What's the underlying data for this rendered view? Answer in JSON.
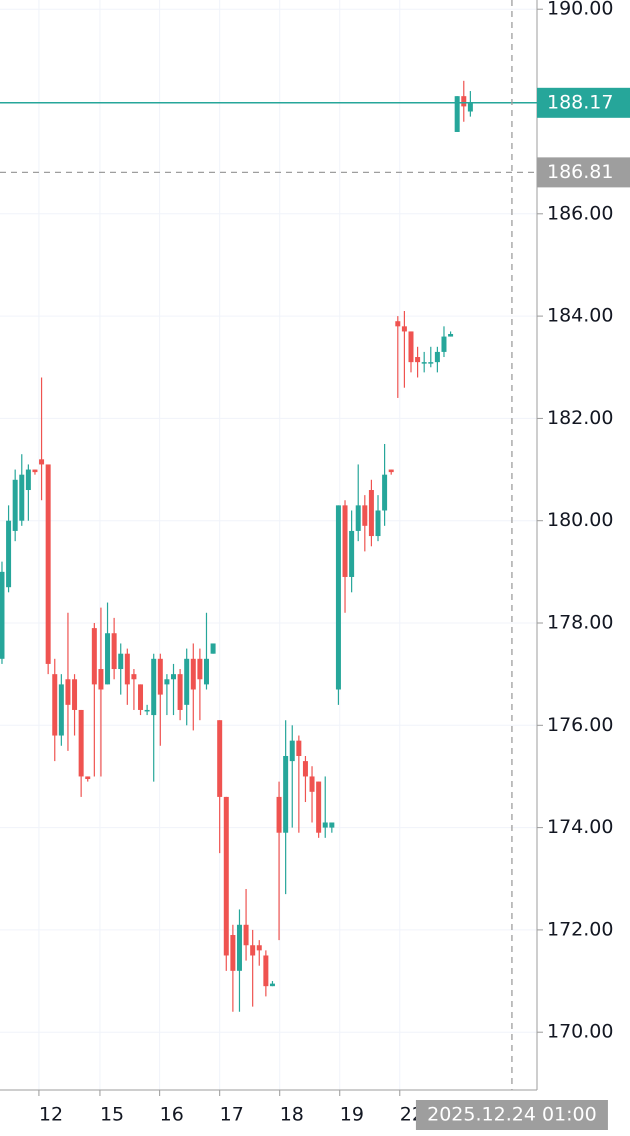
{
  "chart_data": {
    "type": "candlestick",
    "open": [
      177.3,
      178.7,
      179.8,
      180.0,
      180.6,
      181.0,
      181.2,
      181.1,
      177.0,
      175.8,
      176.9,
      176.9,
      176.3,
      175.0,
      177.9,
      177.1,
      176.8,
      177.8,
      177.1,
      177.4,
      177.0,
      176.8,
      176.3,
      176.2,
      177.3,
      176.8,
      176.9,
      177.0,
      176.4,
      177.3,
      177.3,
      176.8,
      177.4,
      176.1,
      174.6,
      171.9,
      171.2,
      172.1,
      171.7,
      171.7,
      171.5,
      170.9,
      174.6,
      173.9,
      175.3,
      175.7,
      175.3,
      175.0,
      174.9,
      174.0,
      174.0,
      176.7,
      180.3,
      178.9,
      179.8,
      180.3,
      180.6,
      179.7,
      180.2,
      181.0,
      183.9,
      183.8,
      183.7,
      183.2,
      183.1,
      183.1,
      183.1,
      183.3,
      183.6,
      187.6,
      188.3,
      188.0
    ],
    "high": [
      179.2,
      180.3,
      181.0,
      181.3,
      181.1,
      181.0,
      182.8,
      181.1,
      177.3,
      177.0,
      178.2,
      177.0,
      176.3,
      175.0,
      178.0,
      178.3,
      178.4,
      178.1,
      177.6,
      177.5,
      177.1,
      176.8,
      176.4,
      177.4,
      177.4,
      177.0,
      177.2,
      177.1,
      177.5,
      177.6,
      177.5,
      178.2,
      177.6,
      176.1,
      174.6,
      172.1,
      172.4,
      172.8,
      172.0,
      171.8,
      171.6,
      171.0,
      174.9,
      176.1,
      176.0,
      175.8,
      175.4,
      175.2,
      174.9,
      175.0,
      174.1,
      180.3,
      180.4,
      180.2,
      181.1,
      180.5,
      180.8,
      180.5,
      181.5,
      181.0,
      184.0,
      184.1,
      183.7,
      183.4,
      183.3,
      183.4,
      183.4,
      183.8,
      183.7,
      188.3,
      188.6,
      188.4
    ],
    "low": [
      177.2,
      178.6,
      179.6,
      179.9,
      180.0,
      180.9,
      180.4,
      177.0,
      175.3,
      175.6,
      175.5,
      175.8,
      174.6,
      174.9,
      175.0,
      175.0,
      176.8,
      176.9,
      176.6,
      176.4,
      176.3,
      176.2,
      176.2,
      174.9,
      175.6,
      176.2,
      176.2,
      176.1,
      176.0,
      175.9,
      176.1,
      176.7,
      177.4,
      173.5,
      171.2,
      170.4,
      170.4,
      171.4,
      170.5,
      171.3,
      170.7,
      170.9,
      171.8,
      172.7,
      174.0,
      173.9,
      174.5,
      174.1,
      173.8,
      173.8,
      173.9,
      176.4,
      178.2,
      178.6,
      179.6,
      179.4,
      179.5,
      179.6,
      179.9,
      180.9,
      182.4,
      182.6,
      182.9,
      182.8,
      182.9,
      183.0,
      182.9,
      183.2,
      183.6,
      187.6,
      187.8,
      187.9
    ],
    "close": [
      179.0,
      180.0,
      180.8,
      180.9,
      181.0,
      180.95,
      181.1,
      177.2,
      175.8,
      176.8,
      176.4,
      176.3,
      175.0,
      174.95,
      176.8,
      176.7,
      177.8,
      177.1,
      177.4,
      176.8,
      176.9,
      176.3,
      176.3,
      177.3,
      176.6,
      176.9,
      177.0,
      176.3,
      177.3,
      176.7,
      176.9,
      177.3,
      177.6,
      174.6,
      171.5,
      171.2,
      172.1,
      171.7,
      171.5,
      171.6,
      170.9,
      170.95,
      173.9,
      175.4,
      175.7,
      175.4,
      175.0,
      174.7,
      173.9,
      174.1,
      174.1,
      180.3,
      178.9,
      179.8,
      180.3,
      179.9,
      179.7,
      180.2,
      180.9,
      180.95,
      183.8,
      183.7,
      183.1,
      183.1,
      183.1,
      183.1,
      183.3,
      183.6,
      183.65,
      188.3,
      188.1,
      188.17
    ],
    "up_color": "#26a69a",
    "down_color": "#ef5350",
    "grid": true,
    "xlim": [
      -0.3,
      81.1
    ],
    "ylim": [
      168.87,
      190.18
    ],
    "xticks": [
      {
        "value": 5.6,
        "label": "12"
      },
      {
        "value": 14.85,
        "label": "15"
      },
      {
        "value": 23.9,
        "label": "16"
      },
      {
        "value": 33,
        "label": "17"
      },
      {
        "value": 42.1,
        "label": "18"
      },
      {
        "value": 51.2,
        "label": "19"
      },
      {
        "value": 60.3,
        "label": "22"
      }
    ],
    "yticks": [
      {
        "value": 190,
        "label": "190.00"
      },
      {
        "value": 186,
        "label": "186.00"
      },
      {
        "value": 184,
        "label": "184.00"
      },
      {
        "value": 182,
        "label": "182.00"
      },
      {
        "value": 180,
        "label": "180.00"
      },
      {
        "value": 178,
        "label": "178.00"
      },
      {
        "value": 176,
        "label": "176.00"
      },
      {
        "value": 174,
        "label": "174.00"
      },
      {
        "value": 172,
        "label": "172.00"
      },
      {
        "value": 170,
        "label": "170.00"
      }
    ],
    "last_price": 188.17,
    "crosshair": {
      "x": 77.3,
      "price": 186.81,
      "time_label": "2025.12.24 01:00"
    }
  }
}
